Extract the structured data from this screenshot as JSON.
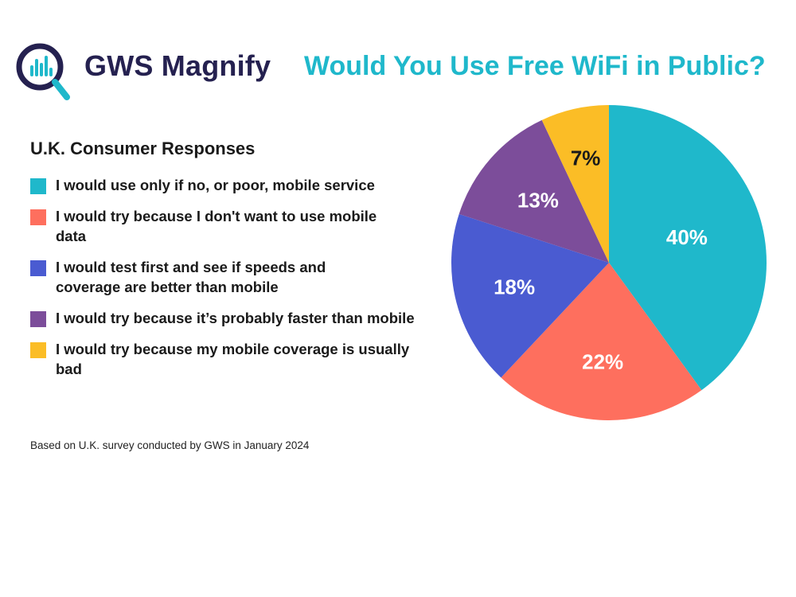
{
  "brand": {
    "name": "GWS Magnify",
    "logo_icon": "magnifier-bar-chart-icon",
    "color": "#252150",
    "accent": "#1fb8cb"
  },
  "chart_data": {
    "type": "pie",
    "title": "Would You Use Free WiFi in Public?",
    "title_color": "#1fb8cb",
    "legend_title": "U.K. Consumer Responses",
    "legend_placement": "left",
    "slices": [
      {
        "label": "I would use only if no, or poor, mobile service",
        "value": 40,
        "display": "40%",
        "color": "#1fb8cb"
      },
      {
        "label": "I would try because I don't want to use mobile data",
        "value": 22,
        "display": "22%",
        "color": "#fe6f5e"
      },
      {
        "label": "I would test first and see if speeds and coverage are better than mobile",
        "value": 18,
        "display": "18%",
        "color": "#4a5bd1"
      },
      {
        "label": "I would try because it’s probably faster than mobile",
        "value": 13,
        "display": "13%",
        "color": "#7c4d9a"
      },
      {
        "label": "I would try because my mobile coverage is usually bad",
        "value": 7,
        "display": "7%",
        "color": "#fbbd26"
      }
    ]
  },
  "footnote": "Based on U.K. survey conducted by GWS in January 2024"
}
